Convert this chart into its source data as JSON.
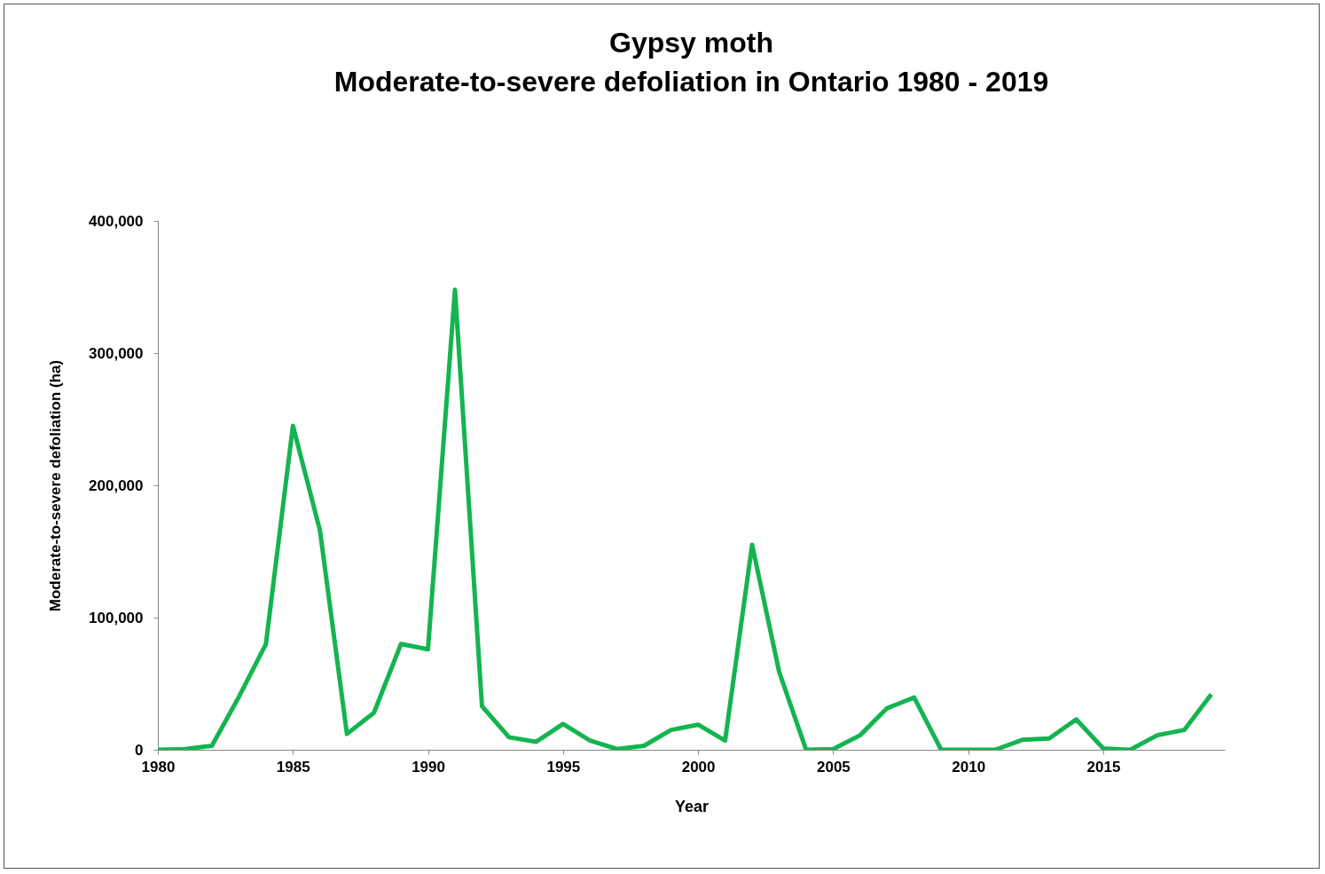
{
  "chart_data": {
    "type": "line",
    "title": "Gypsy moth",
    "subtitle": "Moderate-to-severe defoliation in Ontario 1980 - 2019",
    "xlabel": "Year",
    "ylabel": "Moderate-to-severe defoliation (ha)",
    "x": [
      1980,
      1981,
      1982,
      1983,
      1984,
      1985,
      1986,
      1987,
      1988,
      1989,
      1990,
      1991,
      1992,
      1993,
      1994,
      1995,
      1996,
      1997,
      1998,
      1999,
      2000,
      2001,
      2002,
      2003,
      2004,
      2005,
      2006,
      2007,
      2008,
      2009,
      2010,
      2011,
      2012,
      2013,
      2014,
      2015,
      2016,
      2017,
      2018,
      2019
    ],
    "series": [
      {
        "color": "#14b450",
        "values": [
          0,
          500,
          3000,
          40000,
          80000,
          245000,
          166000,
          12000,
          28000,
          80000,
          76000,
          348000,
          33000,
          9500,
          6000,
          19500,
          7000,
          500,
          3000,
          15000,
          19000,
          7000,
          155000,
          59000,
          0,
          500,
          11000,
          31500,
          39500,
          0,
          0,
          0,
          7500,
          8500,
          23000,
          1000,
          0,
          11000,
          15000,
          42000
        ]
      }
    ],
    "xlim": [
      1980,
      2019.5
    ],
    "xticks": [
      1980,
      1985,
      1990,
      1995,
      2000,
      2005,
      2010,
      2015
    ],
    "ylim": [
      0,
      400000
    ],
    "yticks": [
      0,
      {
        "value": 100000,
        "label": "100,000"
      },
      {
        "value": 200000,
        "label": "200,000"
      },
      {
        "value": 300000,
        "label": "300,000"
      },
      {
        "value": 400000,
        "label": "400,000"
      }
    ],
    "grid": false,
    "marker": "none",
    "line_style": "solid"
  }
}
